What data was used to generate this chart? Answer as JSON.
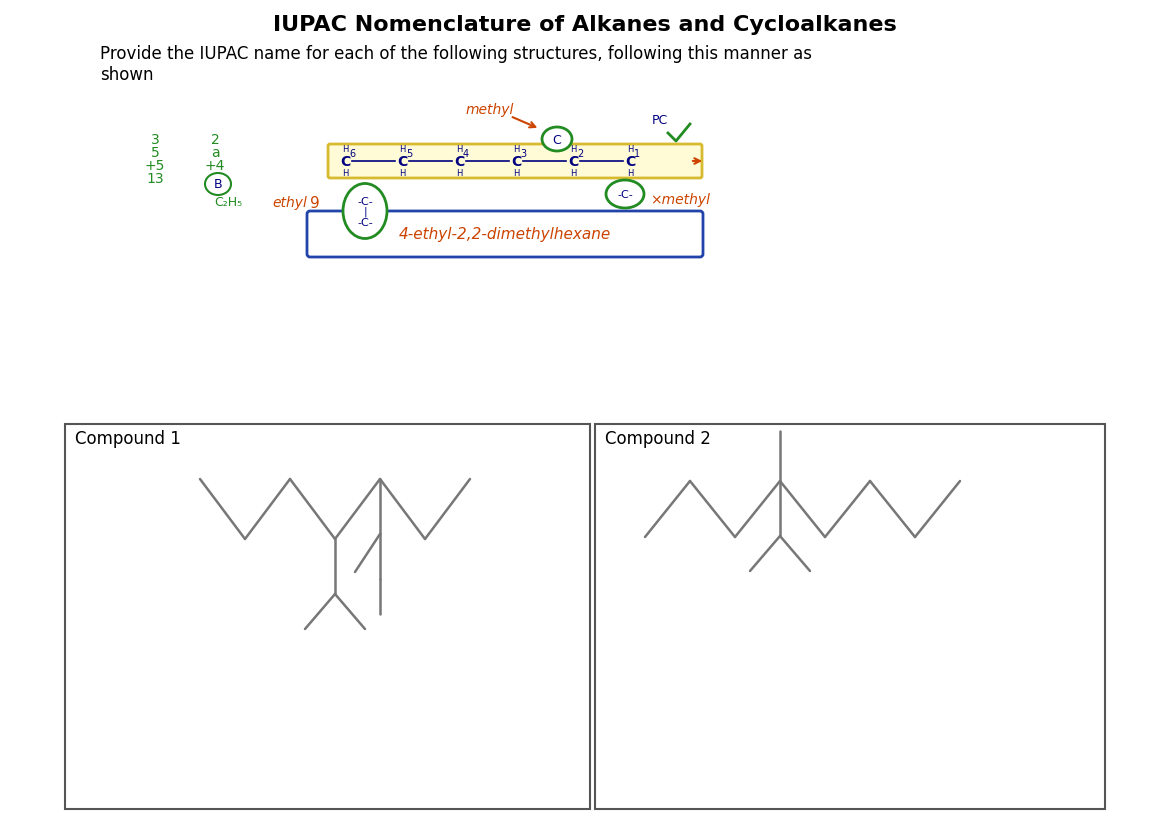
{
  "title": "IUPAC Nomenclature of Alkanes and Cycloalkanes",
  "subtitle": "Provide the IUPAC name for each of the following structures, following this manner as\nshown",
  "compound1_label": "Compound 1",
  "compound2_label": "Compound 2",
  "bg_color": "#ffffff",
  "title_fontsize": 16,
  "subtitle_fontsize": 12,
  "compound_label_fontsize": 12,
  "line_color": "#777777",
  "line_width": 1.8,
  "answer_text": "4-ethyl-2,2-dimethylhexane",
  "green_color": "#228B22",
  "orange_color": "#cc4400",
  "navy_color": "#000080",
  "blue_color": "#2244aa",
  "yellow_fill": "#fffacd",
  "yellow_edge": "#ccaa00"
}
